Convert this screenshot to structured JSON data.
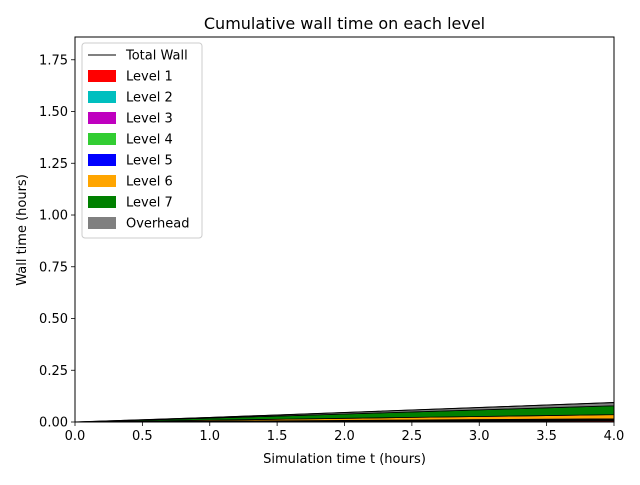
{
  "chart_data": {
    "type": "area",
    "stacked": true,
    "title": "Cumulative wall time on each level",
    "xlabel": "Simulation time t (hours)",
    "ylabel": "Wall time (hours)",
    "xlim": [
      0.0,
      4.0
    ],
    "ylim": [
      0.0,
      1.86
    ],
    "xticks": [
      "0.0",
      "0.5",
      "1.0",
      "1.5",
      "2.0",
      "2.5",
      "3.0",
      "3.5",
      "4.0"
    ],
    "yticks": [
      "0.00",
      "0.25",
      "0.50",
      "0.75",
      "1.00",
      "1.25",
      "1.50",
      "1.75"
    ],
    "grid": false,
    "legend_position": "upper-left",
    "x": [
      0.0,
      0.5,
      1.0,
      1.5,
      2.0,
      2.5,
      3.0,
      3.5,
      4.0
    ],
    "total_wall": {
      "name": "Total Wall",
      "color": "#000000",
      "values": [
        0.0,
        0.011,
        0.022,
        0.034,
        0.046,
        0.058,
        0.07,
        0.082,
        0.094
      ]
    },
    "series": [
      {
        "name": "Level 1",
        "color": "#ff0000",
        "values": [
          0.0,
          0.0007,
          0.0015,
          0.0022,
          0.003,
          0.0037,
          0.0045,
          0.0052,
          0.006
        ]
      },
      {
        "name": "Level 2",
        "color": "#00bfbf",
        "values": [
          0.0,
          0.0003,
          0.0006,
          0.0009,
          0.0012,
          0.0015,
          0.0018,
          0.0021,
          0.0024
        ]
      },
      {
        "name": "Level 3",
        "color": "#bf00bf",
        "values": [
          0.0,
          0.0003,
          0.0006,
          0.0009,
          0.0012,
          0.0015,
          0.0018,
          0.0021,
          0.0024
        ]
      },
      {
        "name": "Level 4",
        "color": "#32cd32",
        "values": [
          0.0,
          0.0003,
          0.0006,
          0.0009,
          0.0012,
          0.0015,
          0.0018,
          0.0021,
          0.0024
        ]
      },
      {
        "name": "Level 5",
        "color": "#0000ff",
        "values": [
          0.0,
          0.0003,
          0.0006,
          0.0009,
          0.0012,
          0.0015,
          0.0018,
          0.0021,
          0.0024
        ]
      },
      {
        "name": "Level 6",
        "color": "#ffa500",
        "values": [
          0.0,
          0.0025,
          0.005,
          0.0075,
          0.01,
          0.0125,
          0.015,
          0.0175,
          0.02
        ]
      },
      {
        "name": "Level 7",
        "color": "#008000",
        "values": [
          0.0,
          0.005,
          0.01,
          0.0155,
          0.021,
          0.0265,
          0.032,
          0.0375,
          0.043
        ]
      },
      {
        "name": "Overhead",
        "color": "#808080",
        "values": [
          0.0,
          0.0016,
          0.0031,
          0.0051,
          0.0072,
          0.0093,
          0.0113,
          0.0134,
          0.0154
        ]
      }
    ]
  }
}
